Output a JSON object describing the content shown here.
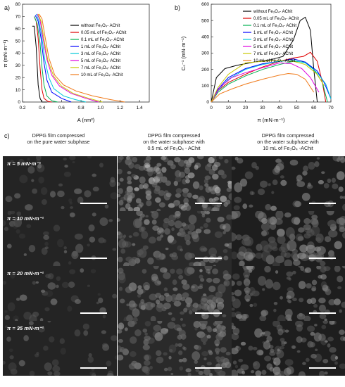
{
  "panels": {
    "a": "a)",
    "b": "b)",
    "c": "c)"
  },
  "chart_data": [
    {
      "type": "line",
      "xlabel": "A (nm²)",
      "ylabel": "π (mN·m⁻¹)",
      "xlim": [
        0.2,
        1.5
      ],
      "ylim": [
        0,
        80
      ],
      "xticks": [
        "0.2",
        "0.4",
        "0.6",
        "0.8",
        "1.0",
        "1.2",
        "1.4"
      ],
      "yticks": [
        "0",
        "10",
        "20",
        "30",
        "40",
        "50",
        "60",
        "70",
        "80"
      ],
      "legend_placement": "right",
      "series": [
        {
          "name": "without Fe₃O₄- AChit",
          "color": "#000000",
          "x": [
            0.3,
            0.32,
            0.34,
            0.36,
            0.38,
            0.4,
            0.45
          ],
          "y": [
            62,
            62,
            45,
            14,
            3,
            0,
            0
          ]
        },
        {
          "name": "0.05 mL of Fe₃O₄- AChit",
          "color": "#e00000",
          "x": [
            0.32,
            0.34,
            0.36,
            0.38,
            0.4,
            0.42,
            0.46,
            0.5
          ],
          "y": [
            70,
            66,
            52,
            28,
            10,
            3,
            0.5,
            0
          ]
        },
        {
          "name": "0.1 mL of Fe₃O₄- AChit",
          "color": "#00b050",
          "x": [
            0.32,
            0.35,
            0.38,
            0.4,
            0.42,
            0.45,
            0.5,
            0.56
          ],
          "y": [
            70,
            64,
            48,
            28,
            14,
            5,
            1,
            0
          ]
        },
        {
          "name": "1 mL of Fe₃O₄- AChit",
          "color": "#0000ff",
          "x": [
            0.33,
            0.36,
            0.39,
            0.42,
            0.45,
            0.5,
            0.6,
            0.7
          ],
          "y": [
            71,
            66,
            52,
            32,
            18,
            8,
            3,
            0
          ]
        },
        {
          "name": "3 mL of Fe₃O₄- AChit",
          "color": "#00c8d8",
          "x": [
            0.34,
            0.37,
            0.4,
            0.43,
            0.47,
            0.52,
            0.62,
            0.74,
            0.85
          ],
          "y": [
            72,
            66,
            52,
            34,
            20,
            11,
            5,
            2,
            0
          ]
        },
        {
          "name": "5 mL of Fe₃O₄- AChit",
          "color": "#e000e0",
          "x": [
            0.35,
            0.38,
            0.41,
            0.45,
            0.5,
            0.58,
            0.7,
            0.85,
            0.98
          ],
          "y": [
            72,
            67,
            52,
            35,
            22,
            13,
            7,
            3,
            0
          ]
        },
        {
          "name": "7 mL of Fe₃O₄- AChit",
          "color": "#c8c800",
          "x": [
            0.36,
            0.39,
            0.42,
            0.46,
            0.52,
            0.6,
            0.72,
            0.88,
            1.02
          ],
          "y": [
            72,
            66,
            51,
            34,
            21,
            13,
            7,
            3,
            0
          ]
        },
        {
          "name": "10 mL of Fe₃O₄- AChit",
          "color": "#f07a1a",
          "x": [
            0.37,
            0.4,
            0.43,
            0.47,
            0.53,
            0.62,
            0.75,
            0.92,
            1.1,
            1.25
          ],
          "y": [
            72,
            68,
            54,
            36,
            22,
            14,
            9,
            5,
            2,
            0
          ]
        }
      ]
    },
    {
      "type": "line",
      "xlabel": "π (mN·m⁻¹)",
      "ylabel": "Cₛ⁻¹ (mN·m⁻¹)",
      "xlim": [
        0,
        70
      ],
      "ylim": [
        0,
        600
      ],
      "xticks": [
        "0",
        "10",
        "20",
        "30",
        "40",
        "50",
        "60",
        "70"
      ],
      "yticks": [
        "0",
        "100",
        "200",
        "300",
        "400",
        "500",
        "600"
      ],
      "legend_placement": "top",
      "series": [
        {
          "name": "without Fe₃O₄- AChit",
          "color": "#000000",
          "x": [
            0,
            3,
            8,
            15,
            25,
            35,
            42,
            48,
            52,
            55,
            58,
            60,
            62
          ],
          "y": [
            0,
            150,
            205,
            225,
            245,
            260,
            280,
            380,
            500,
            520,
            440,
            200,
            0
          ]
        },
        {
          "name": "0.05 mL of Fe₃O₄- AChit",
          "color": "#e00000",
          "x": [
            0,
            4,
            10,
            20,
            30,
            40,
            48,
            54,
            58,
            62,
            65,
            67
          ],
          "y": [
            0,
            70,
            120,
            170,
            215,
            250,
            270,
            280,
            305,
            250,
            120,
            0
          ]
        },
        {
          "name": "0.1 mL of Fe₃O₄- AChit",
          "color": "#00b050",
          "x": [
            0,
            4,
            10,
            20,
            30,
            40,
            48,
            55,
            60,
            65,
            68
          ],
          "y": [
            0,
            60,
            110,
            160,
            200,
            230,
            250,
            245,
            200,
            120,
            0
          ]
        },
        {
          "name": "1 mL of Fe₃O₄- AChit",
          "color": "#0000ff",
          "x": [
            0,
            4,
            10,
            20,
            30,
            40,
            48,
            55,
            62,
            66,
            70
          ],
          "y": [
            0,
            80,
            150,
            205,
            235,
            250,
            265,
            245,
            190,
            120,
            20
          ]
        },
        {
          "name": "3 mL of Fe₃O₄- AChit",
          "color": "#00c8d8",
          "x": [
            0,
            4,
            10,
            20,
            30,
            40,
            48,
            55,
            62,
            67,
            70
          ],
          "y": [
            0,
            70,
            140,
            200,
            230,
            250,
            255,
            240,
            180,
            110,
            20
          ]
        },
        {
          "name": "5 mL of Fe₃O₄- AChit",
          "color": "#e000e0",
          "x": [
            0,
            5,
            12,
            20,
            30,
            40,
            47,
            53,
            58,
            63
          ],
          "y": [
            0,
            90,
            150,
            180,
            210,
            240,
            235,
            205,
            150,
            60
          ]
        },
        {
          "name": "7 mL of Fe₃O₄- AChit",
          "color": "#c8c800",
          "x": [
            0,
            4,
            10,
            20,
            30,
            40,
            48,
            55,
            62,
            66
          ],
          "y": [
            0,
            90,
            170,
            240,
            250,
            255,
            250,
            230,
            170,
            100
          ]
        },
        {
          "name": "10 mL of Fe₃O₄- AChit",
          "color": "#f07a1a",
          "x": [
            0,
            5,
            12,
            20,
            30,
            40,
            45,
            50,
            55,
            60
          ],
          "y": [
            0,
            50,
            80,
            110,
            140,
            165,
            175,
            170,
            140,
            60
          ]
        }
      ]
    }
  ],
  "micrographs": {
    "columns": [
      {
        "line1": "DPPG film compressed",
        "line2": "on the pure water subphase",
        "line3": ""
      },
      {
        "line1": "DPPG film compressed",
        "line2": "on the water subphase with",
        "line3": "0.5 mL of Fe₃O₄ - AChit"
      },
      {
        "line1": "DPPG film compressed",
        "line2": "on the water subphase with",
        "line3": "10 mL of Fe₃O₄ -AChit"
      }
    ],
    "rows": [
      "π = 5 mN·m⁻¹",
      "π = 10 mN·m⁻¹",
      "π = 20 mN·m⁻¹",
      "π = 35 mN·m⁻¹"
    ]
  }
}
